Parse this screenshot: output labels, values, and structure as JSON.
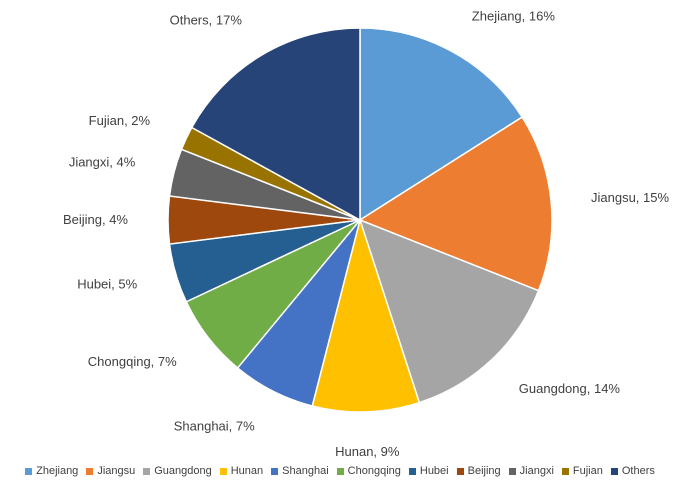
{
  "chart_data": {
    "type": "pie",
    "categories": [
      "Zhejiang",
      "Jiangsu",
      "Guangdong",
      "Hunan",
      "Shanghai",
      "Chongqing",
      "Hubei",
      "Beijing",
      "Jiangxi",
      "Fujian",
      "Others"
    ],
    "values": [
      16,
      15,
      14,
      9,
      7,
      7,
      5,
      4,
      4,
      2,
      17
    ],
    "labels": [
      "Zhejiang, 16%",
      "Jiangsu, 15%",
      "Guangdong, 14%",
      "Hunan, 9%",
      "Shanghai, 7%",
      "Chongqing, 7%",
      "Hubei, 5%",
      "Beijing, 4%",
      "Jiangxi, 4%",
      "Fujian, 2%",
      "Others, 17%"
    ],
    "colors": [
      "#5B9BD5",
      "#ED7D31",
      "#A5A5A5",
      "#FFC000",
      "#4472C4",
      "#70AD47",
      "#255E91",
      "#9E480E",
      "#636363",
      "#997300",
      "#264478"
    ],
    "legend_position": "bottom",
    "start_angle": "top, clockwise"
  }
}
